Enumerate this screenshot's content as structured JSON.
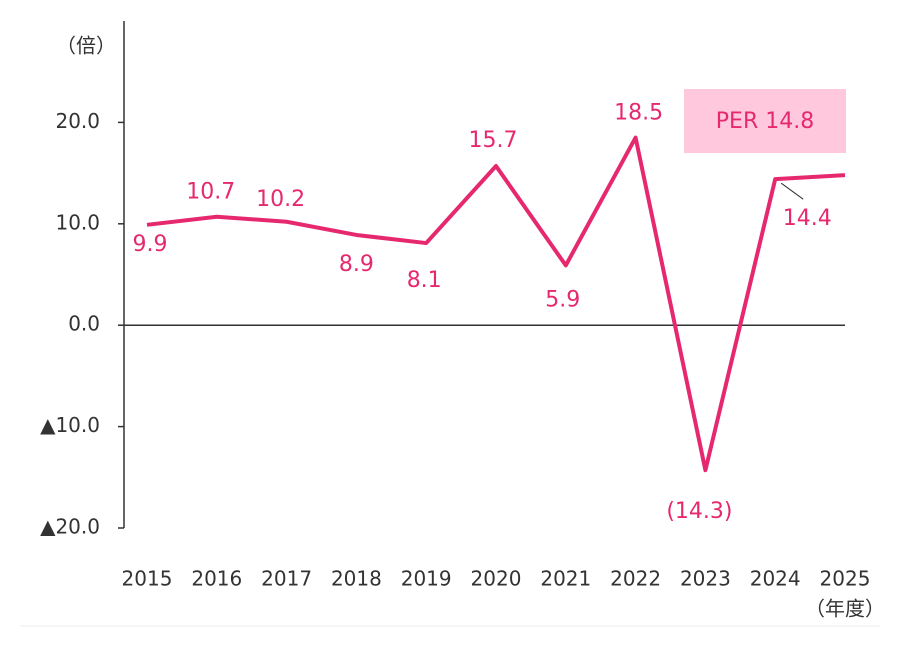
{
  "chart_data": {
    "type": "line",
    "y_unit": "（倍）",
    "x_unit": "（年度）",
    "categories": [
      "2015",
      "2016",
      "2017",
      "2018",
      "2019",
      "2020",
      "2021",
      "2022",
      "2023",
      "2024",
      "2025"
    ],
    "series": [
      {
        "name": "PER",
        "color": "#e6296f",
        "values": [
          9.9,
          10.7,
          10.2,
          8.9,
          8.1,
          15.7,
          5.9,
          18.5,
          -14.3,
          14.4,
          14.8
        ],
        "value_labels": [
          "9.9",
          "10.7",
          "10.2",
          "8.9",
          "8.1",
          "15.7",
          "5.9",
          "18.5",
          "(14.3)",
          "14.4",
          "PER 14.8"
        ]
      }
    ],
    "ylim": [
      -20,
      30
    ],
    "yticks": [
      {
        "value": 20,
        "label": "20.0"
      },
      {
        "value": 10,
        "label": "10.0"
      },
      {
        "value": 0,
        "label": "0.0"
      },
      {
        "value": -10,
        "label": "▲10.0"
      },
      {
        "value": -20,
        "label": "▲20.0"
      }
    ],
    "highlight_color": "#ffc8dc"
  }
}
